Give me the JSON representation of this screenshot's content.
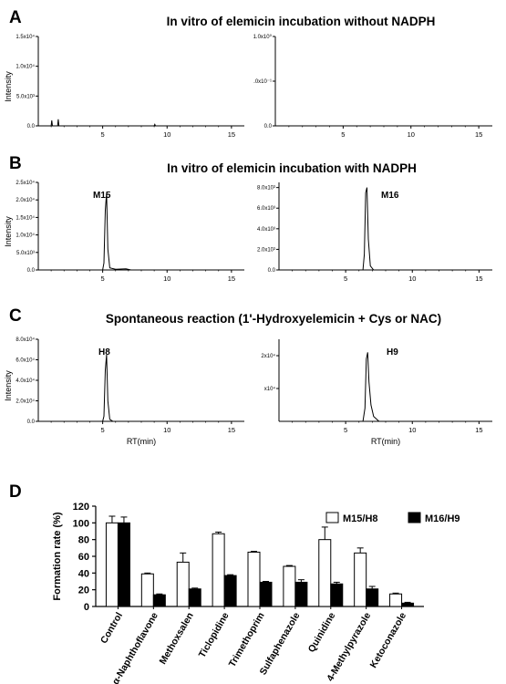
{
  "panels": [
    {
      "letter": "A",
      "title": "In vitro of elemicin incubation without NADPH",
      "charts": [
        {
          "type": "line",
          "ylabel": "Intensity",
          "xlabel": "",
          "peak_label": "",
          "xlim": [
            0,
            16
          ],
          "ylim": [
            0,
            15000
          ],
          "xticks": [
            "5",
            "10",
            "15"
          ],
          "xtick_values": [
            5,
            10,
            15
          ],
          "yticks": [
            "0.0",
            "5.0x10³",
            "1.0x10⁴",
            "1.5x10⁴"
          ],
          "ytick_values": [
            0,
            5000,
            10000,
            15000
          ],
          "trace": [
            [
              0,
              0
            ],
            [
              1.0,
              0
            ],
            [
              1.05,
              900
            ],
            [
              1.1,
              0
            ],
            [
              1.5,
              0
            ],
            [
              1.55,
              1100
            ],
            [
              1.6,
              0
            ],
            [
              9.0,
              0
            ],
            [
              9.05,
              250
            ],
            [
              9.1,
              0
            ],
            [
              16,
              0
            ]
          ]
        },
        {
          "type": "line",
          "ylabel": "",
          "xlabel": "",
          "peak_label": "",
          "xlim": [
            0,
            16
          ],
          "ylim": [
            0,
            1
          ],
          "xticks": [
            "5",
            "10",
            "15"
          ],
          "xtick_values": [
            5,
            10,
            15
          ],
          "yticks": [
            "0.0",
            ".0x10⁻¹",
            "1.0x10⁰"
          ],
          "ytick_values": [
            0,
            0.5,
            1
          ],
          "trace": []
        }
      ]
    },
    {
      "letter": "B",
      "title": "In vitro of elemicin incubation with NADPH",
      "charts": [
        {
          "type": "line",
          "ylabel": "Intensity",
          "xlabel": "",
          "peak_label": "M15",
          "xlim": [
            0,
            16
          ],
          "ylim": [
            0,
            25000
          ],
          "xticks": [
            "5",
            "10",
            "15"
          ],
          "xtick_values": [
            5,
            10,
            15
          ],
          "yticks": [
            "0.0",
            "5.0x10³",
            "1.0x10⁴",
            "1.5x10⁴",
            "2.0x10⁴",
            "2.5x10⁴"
          ],
          "ytick_values": [
            0,
            5000,
            10000,
            15000,
            20000,
            25000
          ],
          "trace": [
            [
              0,
              0
            ],
            [
              5.0,
              0
            ],
            [
              5.1,
              2000
            ],
            [
              5.2,
              17000
            ],
            [
              5.3,
              22000
            ],
            [
              5.4,
              6000
            ],
            [
              5.55,
              600
            ],
            [
              6.0,
              200
            ],
            [
              6.8,
              300
            ],
            [
              7.2,
              0
            ],
            [
              16,
              0
            ]
          ]
        },
        {
          "type": "line",
          "ylabel": "",
          "xlabel": "",
          "peak_label": "M16",
          "xlim": [
            0,
            16
          ],
          "ylim": [
            0,
            8500
          ],
          "xticks": [
            "5",
            "10",
            "15"
          ],
          "xtick_values": [
            5,
            10,
            15
          ],
          "yticks": [
            "0.0",
            "2.0x10³",
            "4.0x10³",
            "6.0x10³",
            "8.0x10³"
          ],
          "ytick_values": [
            0,
            2000,
            4000,
            6000,
            8000
          ],
          "trace": [
            [
              0,
              0
            ],
            [
              6.3,
              0
            ],
            [
              6.4,
              1500
            ],
            [
              6.5,
              7500
            ],
            [
              6.6,
              8000
            ],
            [
              6.7,
              3000
            ],
            [
              6.85,
              400
            ],
            [
              7.1,
              0
            ],
            [
              16,
              0
            ]
          ]
        }
      ]
    },
    {
      "letter": "C",
      "title": "Spontaneous reaction (1'-Hydroxyelemicin + Cys or NAC)",
      "charts": [
        {
          "type": "line",
          "ylabel": "Intensity",
          "xlabel": "RT(min)",
          "peak_label": "H8",
          "xlim": [
            0,
            16
          ],
          "ylim": [
            0,
            80000
          ],
          "xticks": [
            "5",
            "10",
            "15"
          ],
          "xtick_values": [
            5,
            10,
            15
          ],
          "yticks": [
            "0.0",
            "2.0x10⁴",
            "4.0x10⁴",
            "6.0x10⁴",
            "8.0x10⁴"
          ],
          "ytick_values": [
            0,
            20000,
            40000,
            60000,
            80000
          ],
          "trace": [
            [
              0,
              0
            ],
            [
              5.0,
              0
            ],
            [
              5.1,
              5000
            ],
            [
              5.2,
              50000
            ],
            [
              5.3,
              65000
            ],
            [
              5.4,
              20000
            ],
            [
              5.55,
              2000
            ],
            [
              5.8,
              0
            ],
            [
              16,
              0
            ]
          ]
        },
        {
          "type": "line",
          "ylabel": "",
          "xlabel": "RT(min)",
          "peak_label": "H9",
          "xlim": [
            0,
            16
          ],
          "ylim": [
            0,
            25000
          ],
          "xticks": [
            "5",
            "10",
            "15"
          ],
          "xtick_values": [
            5,
            10,
            15
          ],
          "yticks": [
            "x10⁴",
            "2x10⁴"
          ],
          "ytick_values": [
            10000,
            20000
          ],
          "trace": [
            [
              0,
              0
            ],
            [
              6.3,
              0
            ],
            [
              6.45,
              4000
            ],
            [
              6.55,
              19000
            ],
            [
              6.65,
              21000
            ],
            [
              6.75,
              12000
            ],
            [
              6.9,
              5000
            ],
            [
              7.1,
              1500
            ],
            [
              7.5,
              0
            ],
            [
              16,
              0
            ]
          ]
        }
      ]
    }
  ],
  "panel_d": {
    "letter": "D",
    "chart_data": {
      "type": "bar",
      "ylabel": "Formation rate (%)",
      "ylim": [
        0,
        120
      ],
      "yticks": [
        "0",
        "20",
        "40",
        "60",
        "80",
        "100",
        "120"
      ],
      "ytick_values": [
        0,
        20,
        40,
        60,
        80,
        100,
        120
      ],
      "categories": [
        "Control",
        "α-Naphthoflavone",
        "Methoxsalen",
        "Ticlopidine",
        "Trimethoprim",
        "Sulfaphenazole",
        "Quinidine",
        "4-Methylpyrazole",
        "Ketoconazole"
      ],
      "series": [
        {
          "name": "M15/H8",
          "color": "#ffffff",
          "values": [
            100,
            39,
            53,
            87,
            65,
            48,
            80,
            64,
            15
          ],
          "errors": [
            8,
            1,
            11,
            2,
            1,
            1,
            15,
            6,
            1
          ]
        },
        {
          "name": "M16/H9",
          "color": "#000000",
          "values": [
            100,
            14,
            21,
            37,
            29,
            29,
            27,
            21,
            4
          ],
          "errors": [
            7,
            1,
            1,
            1,
            1,
            3,
            2,
            3,
            1
          ]
        }
      ]
    }
  }
}
